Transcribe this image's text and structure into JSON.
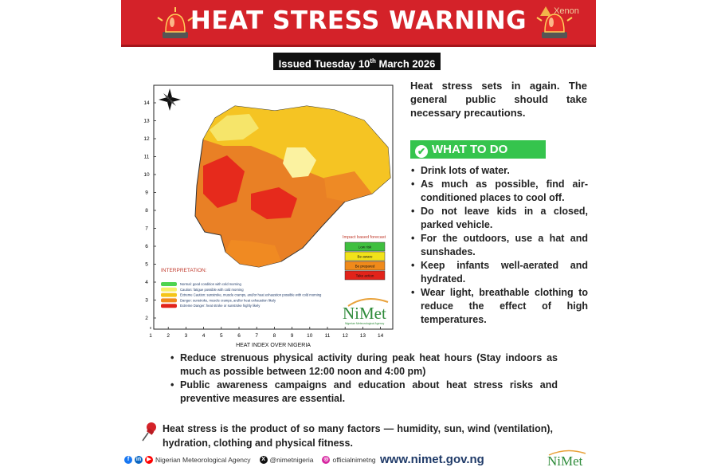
{
  "header": {
    "title": "HEAT STRESS WARNING",
    "partner_mark": "Xenon"
  },
  "issued": {
    "prefix": "Issued Tuesday 10",
    "suffix": "th",
    "rest": " March 2026"
  },
  "map": {
    "title": "HEAT INDEX OVER NIGERIA",
    "x_ticks": [
      "1",
      "2",
      "3",
      "4",
      "5",
      "6",
      "7",
      "8",
      "9",
      "10",
      "11",
      "12",
      "13",
      "14"
    ],
    "y_ticks": [
      "14",
      "13",
      "12",
      "11",
      "10",
      "9",
      "8",
      "7",
      "6",
      "5",
      "4",
      "3",
      "2"
    ],
    "impact_title": "Impact based forecast",
    "impact_levels": [
      {
        "label": "Low risk",
        "color": "#3fbf3f"
      },
      {
        "label": "Be aware",
        "color": "#f2e21a"
      },
      {
        "label": "Be prepared",
        "color": "#f08a1a"
      },
      {
        "label": "Take action",
        "color": "#e2231a"
      }
    ],
    "interpretation_title": "INTERPRETATION:",
    "legend": [
      {
        "color": "#4fd34f",
        "text": "Normal: good condition with cold morning"
      },
      {
        "color": "#f7ef6a",
        "text": "Caution: fatigue possible with cold morning"
      },
      {
        "color": "#f5c518",
        "text": "Extreme Caution: sunstroke, muscle cramps, and/or heat exhaustion possible with cold morning"
      },
      {
        "color": "#f08a1a",
        "text": "Danger: sunstroke, muscle cramps, and/or heat exhaustion likely"
      },
      {
        "color": "#e2231a",
        "text": "Extreme Danger: heat stroke or sunstroke highly likely"
      }
    ],
    "logo_text": "NiMet",
    "logo_sub": "Nigerian Meteorological Agency"
  },
  "intro": "Heat stress sets in again. The general public should take necessary precautions.",
  "what_to_do": {
    "title": "WHAT TO DO",
    "items": [
      "Drink lots of water.",
      "As much as possible, find air-conditioned places to cool off.",
      "Do not leave kids in a closed, parked vehicle.",
      "For the outdoors, use a hat and sunshades.",
      "Keep infants well-aerated and hydrated.",
      "Wear light, breathable clothing to reduce the effect of high temperatures."
    ]
  },
  "more_items": [
    "Reduce strenuous physical activity during peak heat hours (Stay indoors as much as possible between 12:00 noon and 4:00 pm)",
    "Public awareness campaigns and education about heat stress risks and preventive measures are essential."
  ],
  "factors": "Heat stress is the product of so many factors — humidity, sun, wind (ventilation), hydration, clothing and physical fitness.",
  "footer": {
    "agency": "Nigerian Meteorological Agency",
    "twitter": "@nimetnigeria",
    "instagram": "officialnimetng",
    "website": "www.nimet.gov.ng",
    "logo_text": "NiMet"
  },
  "colors": {
    "banner": "#d42229",
    "green": "#35c44d",
    "navy": "#1f3a68"
  }
}
